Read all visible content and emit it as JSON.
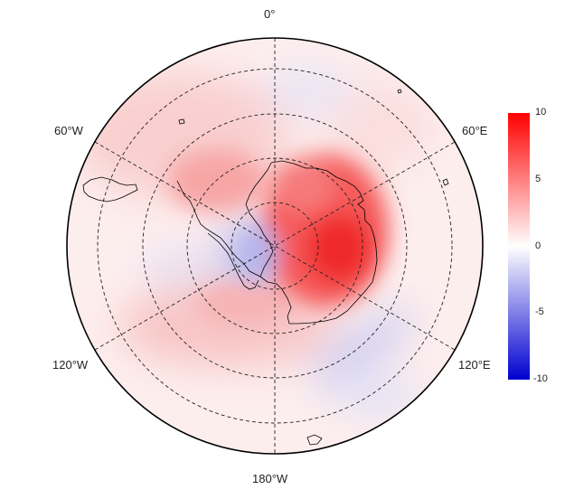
{
  "map": {
    "projection": "south-polar-stereographic",
    "graticule": "dashed",
    "coastlines": true,
    "lon_labels": {
      "top": "0°",
      "bottom": "180°W",
      "upper_left": "60°W",
      "upper_right": "60°E",
      "lower_left": "120°W",
      "lower_right": "120°E"
    }
  },
  "colorbar": {
    "min": -10,
    "max": 10,
    "ticks": [
      "10",
      "5",
      "0",
      "-5",
      "-10"
    ],
    "colors": {
      "max": "#ff0000",
      "mid": "#ffffff",
      "min": "#0000d0"
    }
  }
}
